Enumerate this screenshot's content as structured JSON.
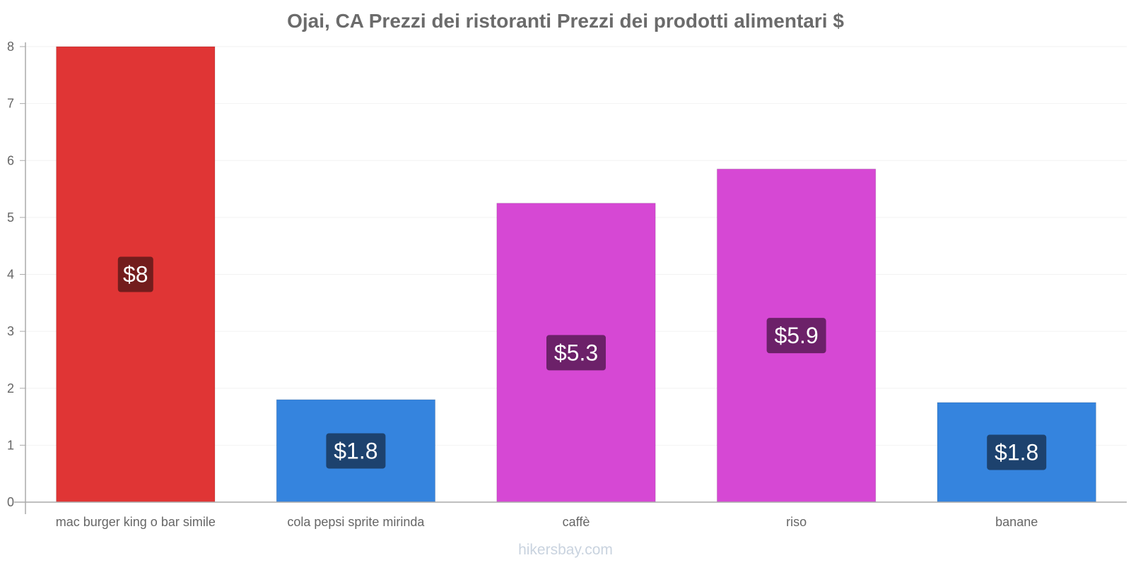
{
  "chart_data": {
    "type": "bar",
    "title": "Ojai, CA Prezzi dei ristoranti Prezzi dei prodotti alimentari $",
    "categories": [
      "mac burger king o bar simile",
      "cola pepsi sprite mirinda",
      "caffè",
      "riso",
      "banane"
    ],
    "values": [
      8,
      1.8,
      5.25,
      5.85,
      1.75
    ],
    "value_labels": [
      "$8",
      "$1.8",
      "$5.3",
      "$5.9",
      "$1.8"
    ],
    "bar_colors": [
      "#e03535",
      "#3584de",
      "#d648d4",
      "#d648d4",
      "#3584de"
    ],
    "label_bg_colors": [
      "#731d1d",
      "#1d426e",
      "#6c2169",
      "#6c2169",
      "#1d426e"
    ],
    "ylim": [
      0,
      8
    ],
    "yticks": [
      "0",
      "1",
      "2",
      "3",
      "4",
      "5",
      "6",
      "7",
      "8"
    ],
    "xlabel": "",
    "ylabel": "",
    "grid": true
  },
  "watermark": "hikersbay.com"
}
